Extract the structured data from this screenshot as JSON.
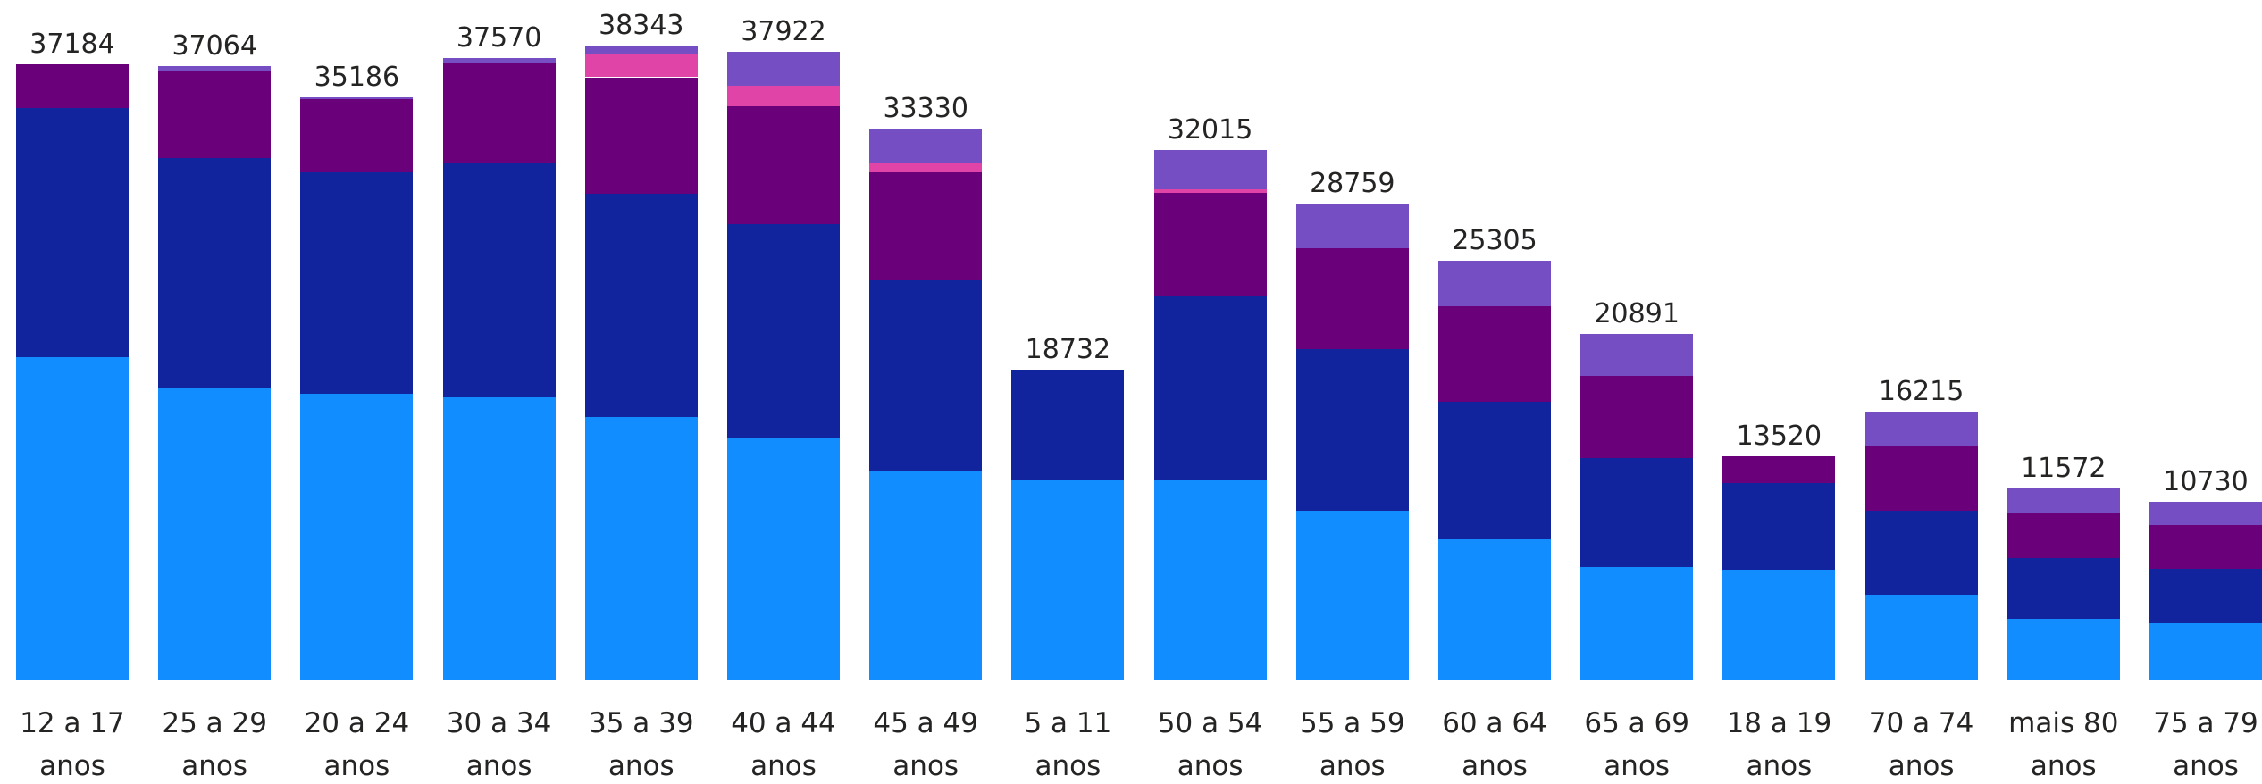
{
  "chart_data": {
    "type": "stacked_bar",
    "categories": [
      "12 a 17 anos",
      "25 a 29 anos",
      "20 a 24 anos",
      "30 a 34 anos",
      "35 a 39 anos",
      "40 a 44 anos",
      "45 a 49 anos",
      "5 a 11 anos",
      "50 a 54 anos",
      "55 a 59 anos",
      "60 a 64 anos",
      "65 a 69 anos",
      "18 a 19 anos",
      "70 a 74 anos",
      "mais 80 anos",
      "75 a 79 anos"
    ],
    "series": [
      {
        "color": "#118dff",
        "values": [
          19500,
          17590,
          17250,
          17070,
          15850,
          14630,
          12630,
          12110,
          12020,
          10190,
          8450,
          6790,
          6620,
          5140,
          3660,
          3400
        ]
      },
      {
        "color": "#12239e",
        "values": [
          15070,
          13940,
          13410,
          14200,
          13500,
          12890,
          11500,
          6622,
          11150,
          9760,
          8360,
          6620,
          5230,
          5050,
          3660,
          3310
        ]
      },
      {
        "color": "#6b007b",
        "values": [
          2614,
          5310,
          4440,
          6010,
          7060,
          7140,
          6530,
          0,
          6270,
          6100,
          5750,
          4970,
          1670,
          3920,
          2790,
          2610
        ]
      },
      {
        "color": "#e044a7",
        "values": [
          0,
          0,
          0,
          0,
          1390,
          1220,
          610,
          0,
          170,
          0,
          0,
          0,
          0,
          0,
          0,
          0
        ]
      },
      {
        "color": "#744ec2",
        "values": [
          0,
          224,
          86,
          290,
          543,
          2042,
          2060,
          0,
          2405,
          2709,
          2745,
          2511,
          0,
          2105,
          1462,
          1410
        ]
      }
    ],
    "totals": [
      37184,
      37064,
      35186,
      37570,
      38343,
      37922,
      33330,
      18732,
      32015,
      28759,
      25305,
      20891,
      13520,
      16215,
      11572,
      10730
    ],
    "ylim": [
      0,
      40000
    ]
  }
}
